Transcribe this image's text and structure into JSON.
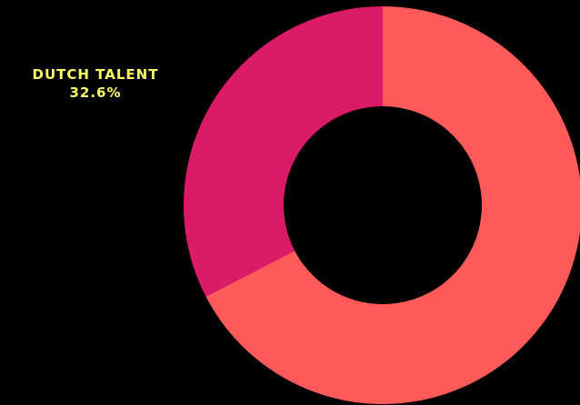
{
  "chart_data": {
    "type": "pie",
    "donut": true,
    "title": "",
    "slices": [
      {
        "label": "",
        "value": 67.4,
        "color": "#ff5a5a"
      },
      {
        "label": "DUTCH TALENT",
        "value": 32.6,
        "value_label": "32.6%",
        "color": "#dc1a6a"
      }
    ],
    "background": "#000000",
    "label_color": "#ffff66"
  }
}
